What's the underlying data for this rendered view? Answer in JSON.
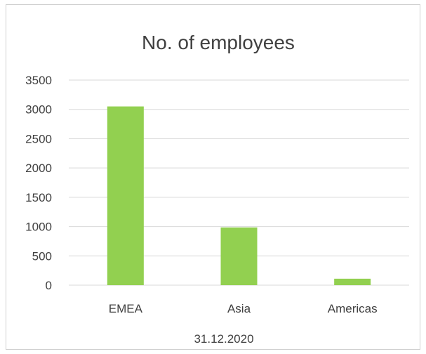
{
  "chart_data": {
    "type": "bar",
    "title": "No. of employees",
    "categories": [
      "EMEA",
      "Asia",
      "Americas"
    ],
    "values": [
      3050,
      985,
      110
    ],
    "xlabel": "31.12.2020",
    "ylabel": "",
    "ylim": [
      0,
      3500
    ],
    "yticks": [
      0,
      500,
      1000,
      1500,
      2000,
      2500,
      3000,
      3500
    ],
    "grid": true,
    "legend": "none",
    "colors": {
      "bar": "#92d050",
      "grid": "#d9d9d9",
      "text": "#404040",
      "border": "#d0d0d0"
    }
  }
}
